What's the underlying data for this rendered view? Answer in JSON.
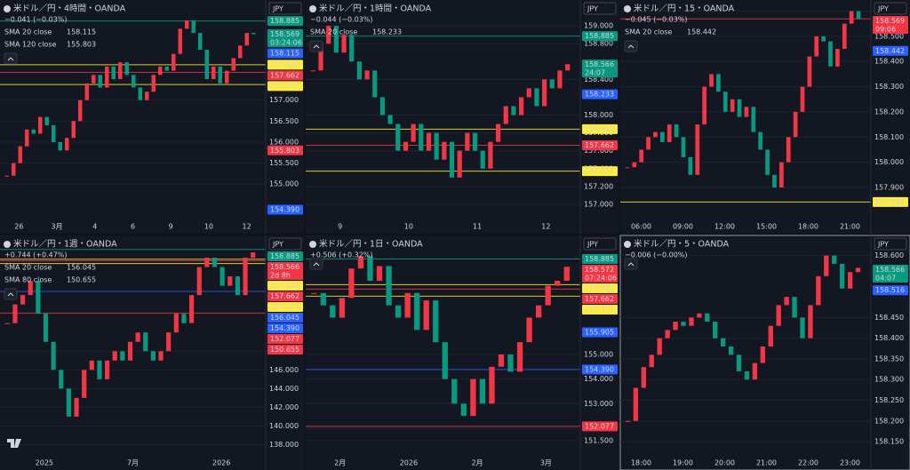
{
  "panels": [
    {
      "title": "米ドル／円・4時間・OANDA",
      "change": "−0.041 (−0.03%)",
      "change_color": "#26a69a",
      "currency": "JPY",
      "indicators": [
        {
          "name": "SMA 20 close",
          "value": "158.115",
          "color": "#2962ff"
        },
        {
          "name": "SMA 120 close",
          "value": "155.803",
          "color": "#f23645"
        }
      ],
      "ylim": [
        154.2,
        159.3
      ],
      "yticks": [
        {
          "value": 157,
          "label": "157.000"
        },
        {
          "value": 156.5,
          "label": "156.500"
        },
        {
          "value": 156,
          "label": "156.000"
        },
        {
          "value": 155.5,
          "label": "155.500"
        },
        {
          "value": 155,
          "label": "155.000"
        }
      ],
      "tags": [
        {
          "value": 158.885,
          "label": "158.885",
          "color": "#089981",
          "line": true
        },
        {
          "value": 158.569,
          "label": "158.569",
          "sub": "03:24:06",
          "color": "#089981",
          "line": false
        },
        {
          "value": 158.115,
          "label": "158.115",
          "color": "#2962ff",
          "line": false
        },
        {
          "value": 157.842,
          "label": "157.842",
          "color": "#ffeb3b",
          "line": true
        },
        {
          "value": 157.662,
          "label": "157.662",
          "color": "#f23645",
          "line": true
        },
        {
          "value": 157.371,
          "label": "157.371",
          "color": "#ffeb3b",
          "line": true
        },
        {
          "value": 155.803,
          "label": "155.803",
          "color": "#f23645",
          "line": false
        },
        {
          "value": 154.39,
          "label": "154.390",
          "color": "#2962ff",
          "line": false
        }
      ],
      "xlabels": [
        "26",
        "3月",
        "4",
        "6",
        "9",
        "10",
        "12"
      ],
      "closes": [
        155.2,
        155.5,
        155.9,
        156.3,
        156.2,
        156.6,
        156.4,
        156.0,
        155.8,
        156.1,
        156.5,
        157.0,
        157.4,
        157.6,
        157.3,
        157.8,
        157.5,
        157.9,
        157.6,
        157.3,
        157.0,
        157.2,
        157.6,
        157.8,
        157.7,
        158.1,
        158.7,
        158.9,
        158.6,
        158.2,
        157.5,
        157.8,
        157.4,
        157.7,
        158.0,
        158.3,
        158.6,
        158.57
      ]
    },
    {
      "title": "米ドル／円・1時間・OANDA",
      "change": "−0.044 (−0.03%)",
      "change_color": "#26a69a",
      "currency": "JPY",
      "indicators": [
        {
          "name": "SMA 20 close",
          "value": "158.233",
          "color": "#2962ff"
        }
      ],
      "ylim": [
        156.85,
        159.25
      ],
      "yticks": [
        {
          "value": 159,
          "label": "159.000"
        },
        {
          "value": 158.8,
          "label": "158.800"
        },
        {
          "value": 158.4,
          "label": "158.400"
        },
        {
          "value": 158,
          "label": "158.000"
        },
        {
          "value": 157.8,
          "label": "157.800"
        },
        {
          "value": 157.6,
          "label": "157.600"
        },
        {
          "value": 157.4,
          "label": "157.400"
        },
        {
          "value": 157.2,
          "label": "157.200"
        },
        {
          "value": 157,
          "label": "157.000"
        }
      ],
      "tags": [
        {
          "value": 158.885,
          "label": "158.885",
          "color": "#089981",
          "line": true
        },
        {
          "value": 158.566,
          "label": "158.566",
          "sub": "24:07",
          "color": "#089981",
          "line": false
        },
        {
          "value": 158.233,
          "label": "158.233",
          "color": "#2962ff",
          "line": false
        },
        {
          "value": 157.842,
          "label": "157.842",
          "color": "#ffeb3b",
          "line": true
        },
        {
          "value": 157.662,
          "label": "157.662",
          "color": "#f23645",
          "line": true
        },
        {
          "value": 157.371,
          "label": "157.371",
          "color": "#ffeb3b",
          "line": true
        }
      ],
      "xlabels": [
        "9",
        "10",
        "11",
        "12"
      ],
      "closes": [
        158.5,
        158.8,
        159.0,
        158.7,
        158.9,
        158.6,
        158.4,
        158.5,
        158.2,
        158.0,
        157.9,
        157.6,
        157.7,
        157.9,
        157.6,
        157.8,
        157.5,
        157.7,
        157.3,
        157.6,
        157.8,
        157.6,
        157.4,
        157.7,
        157.9,
        158.1,
        158.0,
        158.2,
        158.3,
        158.1,
        158.4,
        158.3,
        158.5,
        158.57
      ]
    },
    {
      "title": "米ドル／円・15・OANDA",
      "change": "−0.045 (−0.03%)",
      "change_color": "#f23645",
      "currency": "JPY",
      "indicators": [
        {
          "name": "SMA 20 close",
          "value": "158.442",
          "color": "#2962ff"
        }
      ],
      "ylim": [
        157.78,
        158.63
      ],
      "yticks": [
        {
          "value": 158.6,
          "label": "158.600"
        },
        {
          "value": 158.5,
          "label": "158.500"
        },
        {
          "value": 158.4,
          "label": "158.400"
        },
        {
          "value": 158.3,
          "label": "158.300"
        },
        {
          "value": 158.2,
          "label": "158.200"
        },
        {
          "value": 158.1,
          "label": "158.100"
        },
        {
          "value": 158,
          "label": "158.000"
        },
        {
          "value": 157.9,
          "label": "157.900"
        }
      ],
      "tags": [
        {
          "value": 158.569,
          "label": "158.569",
          "sub": "09:06",
          "color": "#f23645",
          "line": true
        },
        {
          "value": 158.442,
          "label": "158.442",
          "color": "#2962ff",
          "line": false
        },
        {
          "value": 157.842,
          "label": "157.842",
          "color": "#ffeb3b",
          "line": true
        }
      ],
      "xlabels": [
        "06:00",
        "09:00",
        "12:00",
        "15:00",
        "18:00",
        "21:00"
      ],
      "closes": [
        157.98,
        158.0,
        158.05,
        158.1,
        158.12,
        158.08,
        158.15,
        158.1,
        158.02,
        157.95,
        158.15,
        158.3,
        158.35,
        158.28,
        158.2,
        158.25,
        158.18,
        158.22,
        158.12,
        158.05,
        157.95,
        157.9,
        158.0,
        158.1,
        158.2,
        158.3,
        158.42,
        158.5,
        158.48,
        158.38,
        158.45,
        158.55,
        158.6,
        158.57
      ]
    },
    {
      "title": "米ドル／円・1週・OANDA",
      "change": "+0.744 (+0.47%)",
      "change_color": "#f23645",
      "currency": "JPY",
      "indicators": [
        {
          "name": "SMA 20 close",
          "value": "156.045",
          "color": "#2962ff"
        },
        {
          "name": "SMA 80 close",
          "value": "150.655",
          "color": "#f23645"
        }
      ],
      "ylim": [
        137,
        160
      ],
      "yticks": [
        {
          "value": 148,
          "label": "148.000"
        },
        {
          "value": 146,
          "label": "146.000"
        },
        {
          "value": 144,
          "label": "144.000"
        },
        {
          "value": 142,
          "label": "142.000"
        },
        {
          "value": 140,
          "label": "140.000"
        },
        {
          "value": 138,
          "label": "138.000"
        }
      ],
      "tags": [
        {
          "value": 158.885,
          "label": "158.885",
          "color": "#089981",
          "line": true
        },
        {
          "value": 158.566,
          "label": "158.566",
          "sub": "2d 8h",
          "color": "#f23645",
          "line": false
        },
        {
          "value": 157.842,
          "label": "157.842",
          "color": "#ffeb3b",
          "line": true
        },
        {
          "value": 157.662,
          "label": "157.662",
          "color": "#f23645",
          "line": true
        },
        {
          "value": 157.371,
          "label": "157.371",
          "color": "#ffeb3b",
          "line": true
        },
        {
          "value": 156.045,
          "label": "156.045",
          "color": "#2962ff",
          "line": false
        },
        {
          "value": 154.39,
          "label": "154.390",
          "color": "#2962ff",
          "line": true
        },
        {
          "value": 152.077,
          "label": "152.077",
          "color": "#f23645",
          "line": true
        },
        {
          "value": 150.655,
          "label": "150.655",
          "color": "#f23645",
          "line": false
        }
      ],
      "xlabels": [
        "2025",
        "7月",
        "2026"
      ],
      "closes": [
        151,
        153,
        154,
        155.5,
        152,
        149,
        146,
        144,
        141,
        143,
        146,
        147,
        145,
        147,
        148,
        147,
        149,
        150,
        148,
        147,
        148,
        150,
        152,
        151,
        154,
        157,
        158,
        157,
        155,
        156,
        154,
        158,
        158.57
      ]
    },
    {
      "title": "米ドル／円・1日・OANDA",
      "change": "+0.506 (+0.32%)",
      "change_color": "#f23645",
      "currency": "JPY",
      "indicators": [],
      "ylim": [
        150.95,
        159.7
      ],
      "yticks": [
        {
          "value": 155,
          "label": "155.000"
        },
        {
          "value": 154,
          "label": "154.000"
        },
        {
          "value": 153,
          "label": "153.000"
        },
        {
          "value": 152,
          "label": "152.000"
        },
        {
          "value": 151.5,
          "label": "151.500"
        }
      ],
      "tags": [
        {
          "value": 158.885,
          "label": "158.885",
          "color": "#089981",
          "line": true
        },
        {
          "value": 158.572,
          "label": "158.572",
          "sub": "07:24:06",
          "color": "#f23645",
          "line": false
        },
        {
          "value": 157.842,
          "label": "157.842",
          "color": "#ffeb3b",
          "line": true
        },
        {
          "value": 157.662,
          "label": "157.662",
          "color": "#f23645",
          "line": true
        },
        {
          "value": 157.371,
          "label": "157.371",
          "color": "#ffeb3b",
          "line": true
        },
        {
          "value": 155.905,
          "label": "155.905",
          "color": "#2962ff",
          "line": false
        },
        {
          "value": 154.39,
          "label": "154.390",
          "color": "#2962ff",
          "line": true
        },
        {
          "value": 152.077,
          "label": "152.077",
          "color": "#f23645",
          "line": true
        }
      ],
      "xlabels": [
        "2月",
        "2026",
        "2月",
        "3月"
      ],
      "closes": [
        157.5,
        157.0,
        156.5,
        157.3,
        158.5,
        159.0,
        158.0,
        158.6,
        157.0,
        156.5,
        157.5,
        156.0,
        157.2,
        155.5,
        154.0,
        153.0,
        152.5,
        154.0,
        153.0,
        154.5,
        155.0,
        154.3,
        155.5,
        156.5,
        157.0,
        157.8,
        158.0,
        158.57
      ]
    },
    {
      "title": "米ドル／円・5・OANDA",
      "change": "−0.006 (−0.00%)",
      "change_color": "#26a69a",
      "currency": "JPY",
      "indicators": [],
      "ylim": [
        158.12,
        158.64
      ],
      "yticks": [
        {
          "value": 158.6,
          "label": "158.600"
        },
        {
          "value": 158.45,
          "label": "158.450"
        },
        {
          "value": 158.4,
          "label": "158.400"
        },
        {
          "value": 158.35,
          "label": "158.350"
        },
        {
          "value": 158.3,
          "label": "158.300"
        },
        {
          "value": 158.25,
          "label": "158.250"
        },
        {
          "value": 158.2,
          "label": "158.200"
        },
        {
          "value": 158.15,
          "label": "158.150"
        }
      ],
      "tags": [
        {
          "value": 158.566,
          "label": "158.566",
          "sub": "04:07",
          "color": "#089981",
          "line": false
        },
        {
          "value": 158.516,
          "label": "158.516",
          "color": "#2962ff",
          "line": false
        }
      ],
      "xlabels": [
        "18:00",
        "19:00",
        "20:00",
        "21:00",
        "22:00",
        "23:00"
      ],
      "closes": [
        158.2,
        158.28,
        158.33,
        158.36,
        158.4,
        158.42,
        158.44,
        158.43,
        158.45,
        158.46,
        158.44,
        158.4,
        158.38,
        158.36,
        158.32,
        158.3,
        158.34,
        158.38,
        158.43,
        158.48,
        158.5,
        158.45,
        158.4,
        158.48,
        158.55,
        158.6,
        158.58,
        158.52,
        158.56,
        158.57
      ]
    }
  ]
}
